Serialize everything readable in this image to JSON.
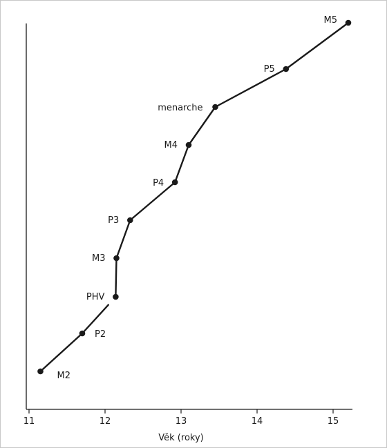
{
  "chart_data": {
    "type": "scatter",
    "title": "",
    "xlabel": "Věk (roky)",
    "ylabel": "",
    "xlim": [
      10.9,
      15.3
    ],
    "grid": false,
    "x_ticks": [
      11,
      12,
      13,
      14,
      15
    ],
    "points": [
      {
        "label": "M2",
        "x": 11.15,
        "rank": 0
      },
      {
        "label": "P2",
        "x": 11.7,
        "rank": 1
      },
      {
        "label": "PHV",
        "x": 12.14,
        "rank": 2
      },
      {
        "label": "M3",
        "x": 12.15,
        "rank": 3
      },
      {
        "label": "P3",
        "x": 12.33,
        "rank": 4
      },
      {
        "label": "P4",
        "x": 12.92,
        "rank": 5
      },
      {
        "label": "M4",
        "x": 13.1,
        "rank": 6
      },
      {
        "label": "menarche",
        "x": 13.45,
        "rank": 7
      },
      {
        "label": "P5",
        "x": 14.38,
        "rank": 8
      },
      {
        "label": "M5",
        "x": 15.2,
        "rank": 9
      }
    ]
  }
}
